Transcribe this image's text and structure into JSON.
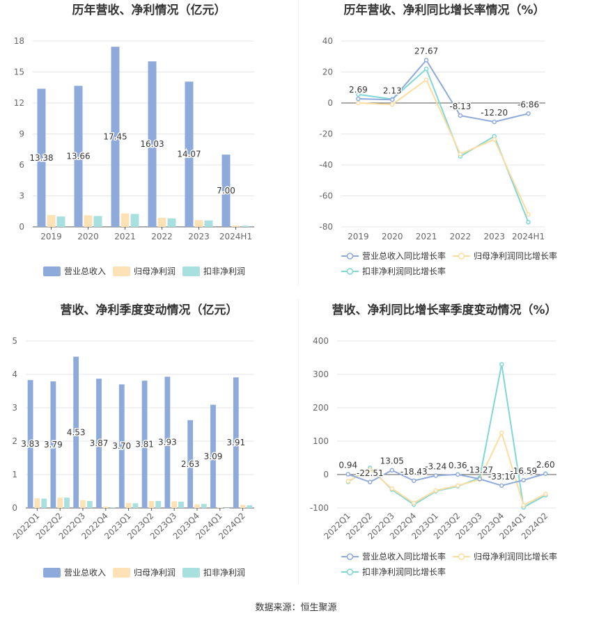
{
  "source": "数据来源：恒生聚源",
  "colors": {
    "revenue": "#8eaadb",
    "netprofit": "#fde2b5",
    "deducted": "#a8e0e0",
    "rev_line": "#8eaadb",
    "np_line": "#fddca0",
    "ded_line": "#7fd6d6"
  },
  "chart_data": [
    {
      "type": "bar",
      "title": "历年营收、净利情况（亿元）",
      "categories": [
        "2019",
        "2020",
        "2021",
        "2022",
        "2023",
        "2024H1"
      ],
      "ylim": [
        0,
        18
      ],
      "yticks": [
        0,
        3,
        6,
        9,
        12,
        15,
        18
      ],
      "series": [
        {
          "name": "营业总收入",
          "values": [
            13.38,
            13.66,
            17.45,
            16.03,
            14.07,
            7.0
          ],
          "labels": [
            "13.38",
            "13.66",
            "17.45",
            "16.03",
            "14.07",
            "7.00"
          ]
        },
        {
          "name": "归母净利润",
          "values": [
            1.15,
            1.12,
            1.3,
            0.88,
            0.65,
            0.12
          ]
        },
        {
          "name": "扣非净利润",
          "values": [
            1.0,
            1.05,
            1.25,
            0.82,
            0.62,
            0.1
          ]
        }
      ]
    },
    {
      "type": "line",
      "title": "历年营收、净利同比增长率情况（%）",
      "categories": [
        "2019",
        "2020",
        "2021",
        "2022",
        "2023",
        "2024H1"
      ],
      "ylim": [
        -80,
        40
      ],
      "yticks": [
        -80,
        -60,
        -40,
        -20,
        0,
        20,
        40
      ],
      "series": [
        {
          "name": "营业总收入同比增长率",
          "values": [
            2.69,
            2.13,
            27.67,
            -8.13,
            -12.2,
            -6.86
          ],
          "labels": [
            "2.69",
            "2.13",
            "27.67",
            "-8.13",
            "-12.20",
            "-6.86"
          ]
        },
        {
          "name": "归母净利润同比增长率",
          "values": [
            0,
            -1,
            15,
            -33,
            -23.5,
            -72
          ]
        },
        {
          "name": "扣非净利润同比增长率",
          "values": [
            5.5,
            2.5,
            22,
            -34.5,
            -21.5,
            -77
          ]
        }
      ]
    },
    {
      "type": "bar",
      "title": "营收、净利季度变动情况（亿元）",
      "categories": [
        "2022Q1",
        "2022Q2",
        "2022Q3",
        "2022Q4",
        "2023Q1",
        "2023Q2",
        "2023Q3",
        "2023Q4",
        "2024Q1",
        "2024Q2"
      ],
      "ylim": [
        0,
        5
      ],
      "yticks": [
        0,
        1,
        2,
        3,
        4,
        5
      ],
      "series": [
        {
          "name": "营业总收入",
          "values": [
            3.83,
            3.79,
            4.53,
            3.87,
            3.7,
            3.81,
            3.93,
            2.63,
            3.09,
            3.91
          ],
          "labels": [
            "3.83",
            "3.79",
            "4.53",
            "3.87",
            "3.70",
            "3.81",
            "3.93",
            "2.63",
            "3.09",
            "3.91"
          ]
        },
        {
          "name": "归母净利润",
          "values": [
            0.29,
            0.31,
            0.23,
            0.04,
            0.15,
            0.21,
            0.2,
            0.11,
            0.01,
            0.09
          ]
        },
        {
          "name": "扣非净利润",
          "values": [
            0.28,
            0.31,
            0.21,
            0.02,
            0.14,
            0.21,
            0.19,
            0.12,
            0.0,
            0.08
          ]
        }
      ]
    },
    {
      "type": "line",
      "title": "营收、净利同比增长率季度变动情况（%）",
      "categories": [
        "2022Q1",
        "2022Q2",
        "2022Q3",
        "2022Q4",
        "2023Q1",
        "2023Q2",
        "2023Q3",
        "2023Q4",
        "2024Q1",
        "2024Q2"
      ],
      "ylim": [
        -100,
        400
      ],
      "yticks": [
        -100,
        0,
        100,
        200,
        300,
        400
      ],
      "series": [
        {
          "name": "营业总收入同比增长率",
          "values": [
            0.94,
            -22.51,
            13.05,
            -18.43,
            -3.24,
            0.36,
            -13.27,
            -33.1,
            -16.59,
            2.6
          ],
          "labels": [
            "0.94",
            "-22.51",
            "13.05",
            "-18.43",
            "-3.24",
            "0.36",
            "-13.27",
            "-33.10",
            "-16.59",
            "2.60"
          ]
        },
        {
          "name": "归母净利润同比增长率",
          "values": [
            -20,
            15,
            -42,
            -85,
            -48,
            -33,
            -15,
            125,
            -92,
            -58
          ]
        },
        {
          "name": "扣非净利润同比增长率",
          "values": [
            -22,
            20,
            -45,
            -90,
            -50,
            -35,
            -10,
            330,
            -98,
            -62
          ]
        }
      ]
    }
  ]
}
